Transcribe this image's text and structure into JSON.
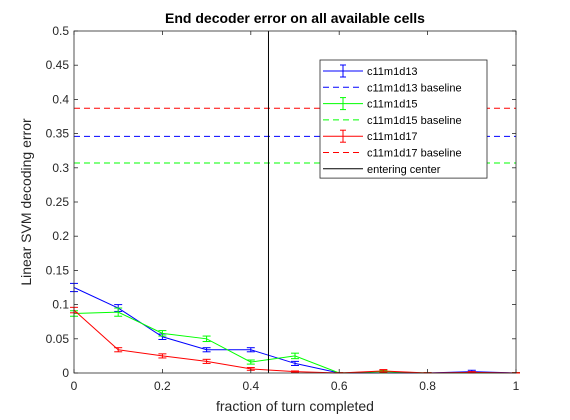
{
  "chart_data": {
    "type": "line",
    "title": "End decoder error on all available cells",
    "xlabel": "fraction of turn completed",
    "ylabel": "Linear SVM decoding error",
    "xlim": [
      0,
      1
    ],
    "ylim": [
      0,
      0.5
    ],
    "xticks": [
      0,
      0.2,
      0.4,
      0.6,
      0.8,
      1
    ],
    "xtick_labels": [
      "0",
      "0.2",
      "0.4",
      "0.6",
      "0.8",
      "1"
    ],
    "yticks": [
      0,
      0.05,
      0.1,
      0.15,
      0.2,
      0.25,
      0.3,
      0.35,
      0.4,
      0.45,
      0.5
    ],
    "ytick_labels": [
      "0",
      "0.05",
      "0.1",
      "0.15",
      "0.2",
      "0.25",
      "0.3",
      "0.35",
      "0.4",
      "0.45",
      "0.5"
    ],
    "grid": false,
    "legend_position": "top-right",
    "x": [
      0,
      0.1,
      0.2,
      0.3,
      0.4,
      0.5,
      0.6,
      0.7,
      0.8,
      0.9,
      1
    ],
    "series": [
      {
        "name": "c11m1d13",
        "color": "#0000ff",
        "style": "solid",
        "values": [
          0.125,
          0.095,
          0.053,
          0.034,
          0.034,
          0.014,
          0.0,
          0.0,
          0.0,
          0.002,
          0.0
        ],
        "errors": [
          0.006,
          0.005,
          0.004,
          0.003,
          0.003,
          0.003,
          0.0005,
          0.0005,
          0.0005,
          0.002,
          0.0005
        ]
      },
      {
        "name": "c11m1d13 baseline",
        "color": "#0000ff",
        "style": "dashed",
        "value": 0.346
      },
      {
        "name": "c11m1d15",
        "color": "#00ff00",
        "style": "solid",
        "values": [
          0.087,
          0.089,
          0.058,
          0.05,
          0.016,
          0.025,
          0.0,
          0.002,
          0.0,
          0.0,
          0.0
        ],
        "errors": [
          0.004,
          0.006,
          0.004,
          0.004,
          0.003,
          0.004,
          0.0005,
          0.002,
          0.0005,
          0.0005,
          0.0005
        ]
      },
      {
        "name": "c11m1d15 baseline",
        "color": "#00ff00",
        "style": "dashed",
        "value": 0.307
      },
      {
        "name": "c11m1d17",
        "color": "#ff0000",
        "style": "solid",
        "values": [
          0.092,
          0.034,
          0.025,
          0.017,
          0.006,
          0.002,
          0.0,
          0.003,
          0.0,
          0.001,
          0.0
        ],
        "errors": [
          0.004,
          0.003,
          0.003,
          0.003,
          0.002,
          0.001,
          0.0005,
          0.002,
          0.0005,
          0.001,
          0.0005
        ]
      },
      {
        "name": "c11m1d17 baseline",
        "color": "#ff0000",
        "style": "dashed",
        "value": 0.387
      },
      {
        "name": "entering center",
        "color": "#000000",
        "style": "vertical",
        "x": 0.44
      }
    ]
  }
}
